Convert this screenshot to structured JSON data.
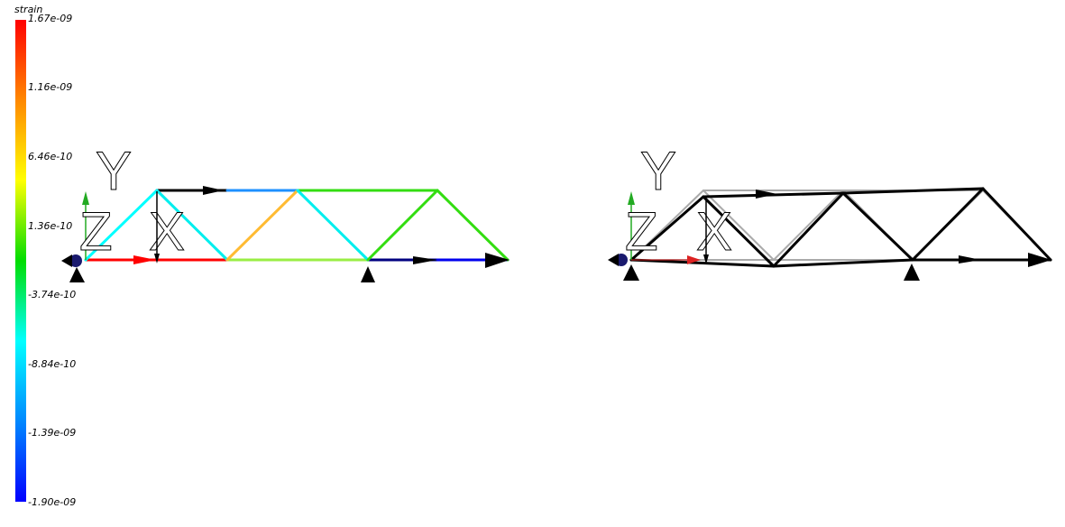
{
  "colorbar": {
    "title": "strain",
    "labels": [
      "1.67e-09",
      "1.16e-09",
      "6.46e-10",
      "1.36e-10",
      "-3.74e-10",
      "-8.84e-10",
      "-1.39e-09",
      "-1.90e-09"
    ],
    "gradient_colors": [
      "#ff0000",
      "#ff8800",
      "#ffff00",
      "#00dd00",
      "#00ffff",
      "#0088ff",
      "#0000ff"
    ]
  },
  "axes_labels": {
    "y": "Y",
    "z": "Z",
    "x": "X"
  },
  "colors": {
    "left_members": [
      "#ff0000",
      "#ff0000",
      "#99ee44",
      "#000080",
      "#0000ee",
      "#000000",
      "#1e90ff",
      "#33dd11",
      "#00ffff",
      "#00eeee",
      "#ffbb33",
      "#00eeee",
      "#33dd11",
      "#33dd11"
    ],
    "deformed": "#000000",
    "undeformed": "#aaaaaa",
    "support": "#000000",
    "node_marker": "#1a1a6e",
    "y_axis_arrow": "#22aa22",
    "x_axis_arrow": "#dd2222"
  }
}
